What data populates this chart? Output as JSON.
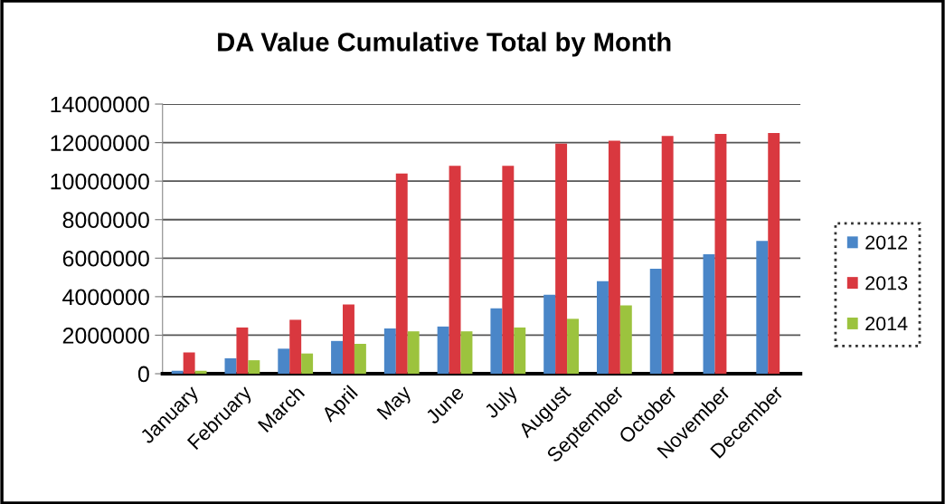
{
  "chart_data": {
    "type": "bar",
    "title": "DA Value Cumulative Total by Month",
    "categories": [
      "January",
      "February",
      "March",
      "April",
      "May",
      "June",
      "July",
      "August",
      "September",
      "October",
      "November",
      "December"
    ],
    "series": [
      {
        "name": "2012",
        "color": "#4a86c8",
        "values": [
          150000,
          800000,
          1300000,
          1700000,
          2350000,
          2450000,
          3400000,
          4100000,
          4800000,
          5450000,
          6200000,
          6900000
        ]
      },
      {
        "name": "2013",
        "color": "#d9383f",
        "values": [
          1100000,
          2400000,
          2800000,
          3600000,
          10400000,
          10800000,
          10800000,
          11950000,
          12100000,
          12350000,
          12450000,
          12500000
        ]
      },
      {
        "name": "2014",
        "color": "#9cc33e",
        "values": [
          150000,
          700000,
          1050000,
          1550000,
          2200000,
          2200000,
          2400000,
          2850000,
          3550000,
          null,
          null,
          null
        ]
      }
    ],
    "ylim": [
      0,
      14000000
    ],
    "yticks": [
      0,
      2000000,
      4000000,
      6000000,
      8000000,
      10000000,
      12000000,
      14000000
    ],
    "grid": "y",
    "legend": "right"
  }
}
